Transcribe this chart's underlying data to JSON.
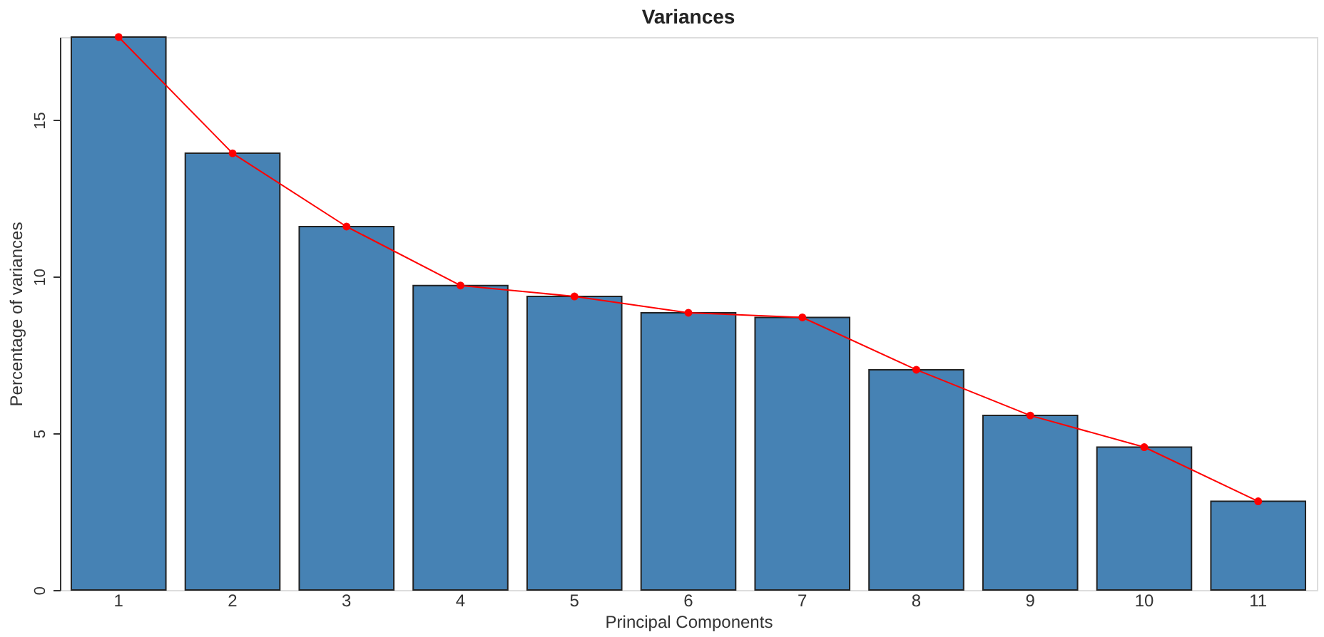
{
  "chart_data": {
    "type": "bar",
    "title": "Variances",
    "xlabel": "Principal Components",
    "ylabel": "Percentage of variances",
    "categories": [
      "1",
      "2",
      "3",
      "4",
      "5",
      "6",
      "7",
      "8",
      "9",
      "10",
      "11"
    ],
    "series": [
      {
        "color": "#4682b4",
        "values": [
          17.65,
          13.94,
          11.6,
          9.72,
          9.37,
          8.85,
          8.7,
          7.03,
          5.57,
          4.56,
          2.83
        ]
      },
      {
        "type": "line",
        "color": "#ff0000",
        "marker": "circle",
        "values": [
          17.65,
          13.94,
          11.6,
          9.72,
          9.37,
          8.85,
          8.7,
          7.03,
          5.57,
          4.56,
          2.83
        ]
      }
    ],
    "ylim": [
      0,
      17.65
    ],
    "yticks": [
      0,
      5,
      10,
      15
    ],
    "grid": false
  }
}
